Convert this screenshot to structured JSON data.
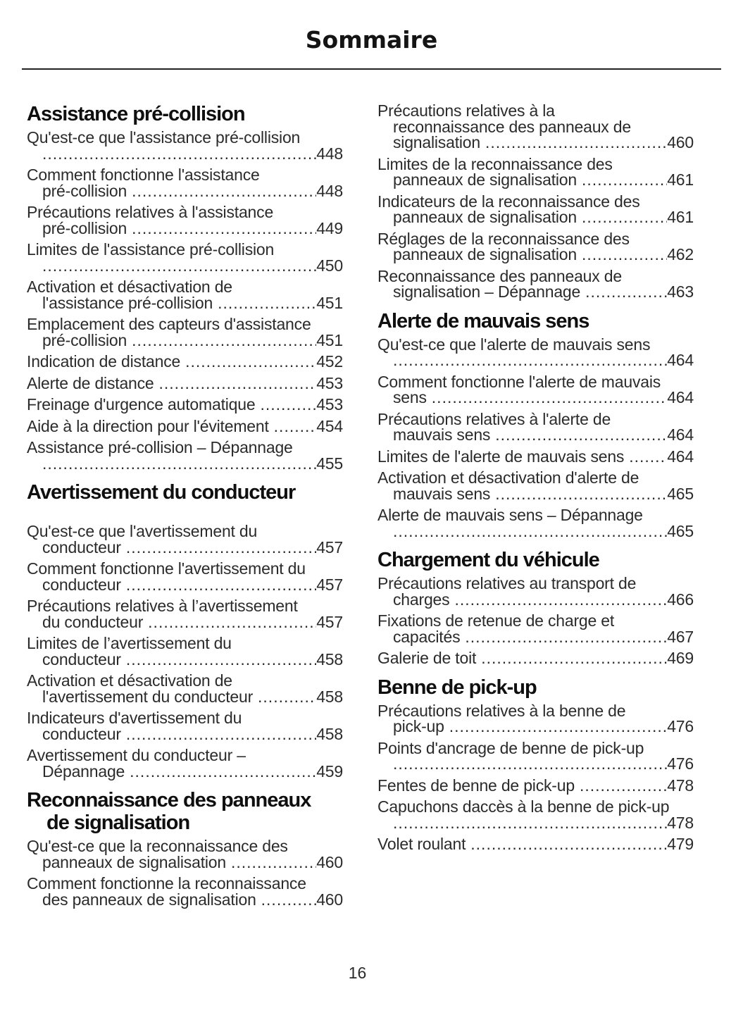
{
  "title": "Sommaire",
  "page_number": "16",
  "colors": {
    "background": "#ffffff",
    "body_text": "#2b2b2b",
    "heading_text": "#0f0f0f",
    "rule": "#232323"
  },
  "toc": {
    "columns": [
      {
        "blocks": [
          {
            "heading_lines": [
              "Assistance pré-collision"
            ],
            "extra_space_after_heading": false,
            "entries": [
              {
                "lines": [
                  "Qu'est-ce que l'assistance pré-collision"
                ],
                "last_line": "",
                "page": "448"
              },
              {
                "lines": [
                  "Comment fonctionne l'assistance"
                ],
                "last_line": "pré-collision",
                "page": "448"
              },
              {
                "lines": [
                  "Précautions relatives à l'assistance"
                ],
                "last_line": "pré-collision",
                "page": "449"
              },
              {
                "lines": [
                  "Limites de l'assistance pré-collision"
                ],
                "last_line": "",
                "page": "450"
              },
              {
                "lines": [
                  "Activation et désactivation de"
                ],
                "last_line": "l'assistance pré-collision",
                "page": "451"
              },
              {
                "lines": [
                  "Emplacement des capteurs d'assistance"
                ],
                "last_line": "pré-collision",
                "page": "451"
              },
              {
                "lines": [],
                "last_line": "Indication de distance",
                "page": "452"
              },
              {
                "lines": [],
                "last_line": "Alerte de distance",
                "page": "453"
              },
              {
                "lines": [],
                "last_line": "Freinage d'urgence automatique",
                "page": "453"
              },
              {
                "lines": [],
                "last_line": "Aide à la direction pour l'évitement",
                "page": "454"
              },
              {
                "lines": [
                  "Assistance pré-collision – Dépannage"
                ],
                "last_line": "",
                "page": "455"
              }
            ]
          },
          {
            "heading_lines": [
              "Avertissement du conducteur"
            ],
            "extra_space_after_heading": true,
            "entries": [
              {
                "lines": [
                  "Qu'est-ce que l'avertissement du"
                ],
                "last_line": "conducteur",
                "page": "457"
              },
              {
                "lines": [
                  "Comment fonctionne l'avertissement du"
                ],
                "last_line": "conducteur",
                "page": "457"
              },
              {
                "lines": [
                  "Précautions relatives à l’avertissement"
                ],
                "last_line": "du conducteur",
                "page": "457"
              },
              {
                "lines": [
                  "Limites de l’avertissement du"
                ],
                "last_line": "conducteur",
                "page": "458"
              },
              {
                "lines": [
                  "Activation et désactivation de"
                ],
                "last_line": "l'avertissement du conducteur",
                "page": "458"
              },
              {
                "lines": [
                  "Indicateurs d'avertissement du"
                ],
                "last_line": "conducteur",
                "page": "458"
              },
              {
                "lines": [
                  "Avertissement du conducteur –"
                ],
                "last_line": "Dépannage",
                "page": "459"
              }
            ]
          },
          {
            "heading_lines": [
              "Reconnaissance des panneaux",
              "de signalisation"
            ],
            "extra_space_after_heading": false,
            "entries": [
              {
                "lines": [
                  "Qu'est-ce que la reconnaissance des"
                ],
                "last_line": "panneaux de signalisation",
                "page": "460"
              },
              {
                "lines": [
                  "Comment fonctionne la reconnaissance"
                ],
                "last_line": "des panneaux de signalisation",
                "page": "460"
              }
            ]
          }
        ]
      },
      {
        "blocks": [
          {
            "heading_lines": [],
            "extra_space_after_heading": false,
            "entries": [
              {
                "lines": [
                  "Précautions relatives à la",
                  "reconnaissance des panneaux de"
                ],
                "last_line": "signalisation",
                "page": "460"
              },
              {
                "lines": [
                  "Limites de la reconnaissance des"
                ],
                "last_line": "panneaux de signalisation",
                "page": "461"
              },
              {
                "lines": [
                  "Indicateurs de la reconnaissance des"
                ],
                "last_line": "panneaux de signalisation",
                "page": "461"
              },
              {
                "lines": [
                  "Réglages de la reconnaissance des"
                ],
                "last_line": "panneaux de signalisation",
                "page": "462"
              },
              {
                "lines": [
                  "Reconnaissance des panneaux de"
                ],
                "last_line": "signalisation – Dépannage",
                "page": "463"
              }
            ]
          },
          {
            "heading_lines": [
              "Alerte de mauvais sens"
            ],
            "extra_space_after_heading": false,
            "entries": [
              {
                "lines": [
                  "Qu'est-ce que l'alerte de mauvais sens"
                ],
                "last_line": "",
                "page": "464"
              },
              {
                "lines": [
                  "Comment fonctionne l'alerte de mauvais"
                ],
                "last_line": "sens",
                "page": "464"
              },
              {
                "lines": [
                  "Précautions relatives à l'alerte de"
                ],
                "last_line": "mauvais sens",
                "page": "464"
              },
              {
                "lines": [],
                "last_line": "Limites de l'alerte de mauvais sens",
                "page": "464"
              },
              {
                "lines": [
                  "Activation et désactivation d'alerte de"
                ],
                "last_line": "mauvais sens",
                "page": "465"
              },
              {
                "lines": [
                  "Alerte de mauvais sens – Dépannage"
                ],
                "last_line": "",
                "page": "465"
              }
            ]
          },
          {
            "heading_lines": [
              "Chargement du véhicule"
            ],
            "extra_space_after_heading": false,
            "entries": [
              {
                "lines": [
                  "Précautions relatives au transport de"
                ],
                "last_line": "charges",
                "page": "466"
              },
              {
                "lines": [
                  "Fixations de retenue de charge et"
                ],
                "last_line": "capacités",
                "page": "467"
              },
              {
                "lines": [],
                "last_line": "Galerie de toit",
                "page": "469"
              }
            ]
          },
          {
            "heading_lines": [
              "Benne de pick-up"
            ],
            "extra_space_after_heading": false,
            "entries": [
              {
                "lines": [
                  "Précautions relatives à la benne de"
                ],
                "last_line": "pick-up",
                "page": "476"
              },
              {
                "lines": [
                  "Points d'ancrage de benne de pick-up"
                ],
                "last_line": "",
                "page": "476"
              },
              {
                "lines": [],
                "last_line": "Fentes de benne de pick-up",
                "page": "478"
              },
              {
                "lines": [
                  "Capuchons daccès à la benne de pick-up"
                ],
                "last_line": "",
                "page": "478"
              },
              {
                "lines": [],
                "last_line": "Volet roulant",
                "page": "479"
              }
            ]
          }
        ]
      }
    ]
  }
}
